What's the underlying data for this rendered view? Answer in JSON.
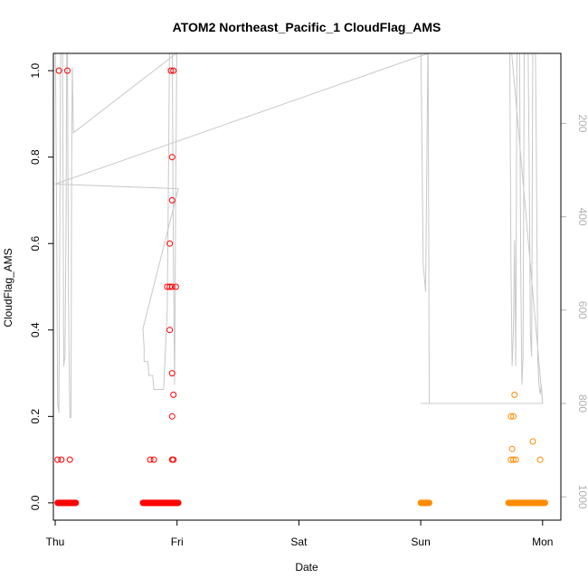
{
  "chart_data": {
    "type": "scatter",
    "title": "ATOM2 Northeast_Pacific_1 CloudFlag_AMS",
    "xlabel": "Date",
    "ylabel": "CloudFlag_AMS",
    "xlim": [
      -0.015,
      4.15
    ],
    "ylim": [
      -0.04,
      1.04
    ],
    "x_ticks": [
      {
        "label": "Thu",
        "value": 0
      },
      {
        "label": "Fri",
        "value": 1
      },
      {
        "label": "Sat",
        "value": 2
      },
      {
        "label": "Sun",
        "value": 3
      },
      {
        "label": "Mon",
        "value": 4
      }
    ],
    "y_ticks": [
      0.0,
      0.2,
      0.4,
      0.6,
      0.8,
      1.0
    ],
    "y_tick_labels": [
      "0.0",
      "0.2",
      "0.4",
      "0.6",
      "0.8",
      "1.0"
    ],
    "y2_ticks": [
      200,
      400,
      600,
      800,
      1000
    ],
    "y2_tick_labels": [
      "200",
      "400",
      "600",
      "800",
      "1000"
    ],
    "y2_lim": [
      1050,
      50
    ],
    "colors": {
      "flight1": "#ff0000",
      "flight2": "#ff8c00",
      "altitude": "#c8c8c8",
      "axis": "#000000",
      "y2_axis": "#b0b0b0"
    },
    "series": [
      {
        "color": "#ff0000",
        "zero_segments": [
          [
            0.02,
            0.17
          ],
          [
            0.72,
            1.01
          ]
        ],
        "points": [
          [
            0.03,
            1.0
          ],
          [
            0.1,
            1.0
          ],
          [
            0.02,
            0.1
          ],
          [
            0.05,
            0.1
          ],
          [
            0.12,
            0.1
          ],
          [
            0.78,
            0.1
          ],
          [
            0.81,
            0.1
          ],
          [
            0.95,
            1.0
          ],
          [
            0.97,
            1.0
          ],
          [
            0.96,
            0.8
          ],
          [
            0.96,
            0.7
          ],
          [
            0.94,
            0.6
          ],
          [
            0.92,
            0.5
          ],
          [
            0.94,
            0.5
          ],
          [
            0.96,
            0.5
          ],
          [
            0.99,
            0.5
          ],
          [
            0.94,
            0.4
          ],
          [
            0.96,
            0.3
          ],
          [
            0.97,
            0.25
          ],
          [
            0.96,
            0.2
          ],
          [
            0.96,
            0.1
          ],
          [
            0.97,
            0.1
          ]
        ]
      },
      {
        "color": "#ff8c00",
        "zero_segments": [
          [
            3.0,
            3.07
          ],
          [
            3.72,
            4.02
          ]
        ],
        "points": [
          [
            3.74,
            0.2
          ],
          [
            3.76,
            0.2
          ],
          [
            3.77,
            0.25
          ],
          [
            3.75,
            0.125
          ],
          [
            3.74,
            0.1
          ],
          [
            3.76,
            0.1
          ],
          [
            3.78,
            0.1
          ],
          [
            3.92,
            0.142
          ],
          [
            3.98,
            0.1
          ]
        ]
      }
    ],
    "altitude_trace": [
      [
        0.0,
        0
      ],
      [
        0.01,
        330
      ],
      [
        0.02,
        800
      ],
      [
        0.03,
        820
      ],
      [
        0.035,
        600
      ],
      [
        0.04,
        300
      ],
      [
        0.045,
        0
      ],
      [
        0.06,
        0
      ],
      [
        0.065,
        400
      ],
      [
        0.07,
        720
      ],
      [
        0.08,
        700
      ],
      [
        0.09,
        400
      ],
      [
        0.095,
        0
      ],
      [
        0.1,
        0
      ],
      [
        0.11,
        600
      ],
      [
        0.12,
        830
      ],
      [
        0.13,
        830
      ],
      [
        0.135,
        300
      ],
      [
        0.14,
        80
      ],
      [
        0.15,
        220
      ],
      [
        0.15,
        220
      ],
      [
        0.995,
        50
      ],
      [
        1.0,
        50
      ],
      [
        3.06,
        50
      ],
      [
        0.0,
        330
      ],
      [
        1.01,
        340
      ],
      [
        0.72,
        640
      ],
      [
        0.73,
        680
      ],
      [
        0.73,
        710
      ],
      [
        0.76,
        710
      ],
      [
        0.77,
        740
      ],
      [
        0.8,
        740
      ],
      [
        0.81,
        770
      ],
      [
        0.89,
        770
      ],
      [
        0.92,
        600
      ],
      [
        0.93,
        300
      ],
      [
        0.94,
        0
      ],
      [
        0.96,
        0
      ],
      [
        0.97,
        500
      ],
      [
        0.98,
        760
      ],
      [
        0.99,
        300
      ],
      [
        1.0,
        0
      ],
      [
        3.0,
        0
      ],
      [
        3.02,
        500
      ],
      [
        3.04,
        560
      ],
      [
        3.06,
        0
      ],
      [
        3.07,
        800
      ],
      [
        3.0,
        800
      ],
      [
        4.0,
        800
      ],
      [
        3.73,
        0
      ],
      [
        3.74,
        500
      ],
      [
        3.75,
        720
      ],
      [
        3.76,
        650
      ],
      [
        3.77,
        450
      ],
      [
        3.78,
        720
      ],
      [
        3.79,
        0
      ],
      [
        3.81,
        0
      ],
      [
        3.82,
        500
      ],
      [
        3.83,
        760
      ],
      [
        3.84,
        700
      ],
      [
        3.85,
        0
      ],
      [
        3.88,
        0
      ],
      [
        3.89,
        300
      ],
      [
        3.9,
        650
      ],
      [
        3.91,
        700
      ],
      [
        3.92,
        0
      ],
      [
        3.94,
        0
      ],
      [
        3.95,
        300
      ],
      [
        3.96,
        700
      ],
      [
        3.97,
        760
      ],
      [
        3.98,
        780
      ],
      [
        3.99,
        760
      ],
      [
        4.0,
        800
      ]
    ]
  }
}
